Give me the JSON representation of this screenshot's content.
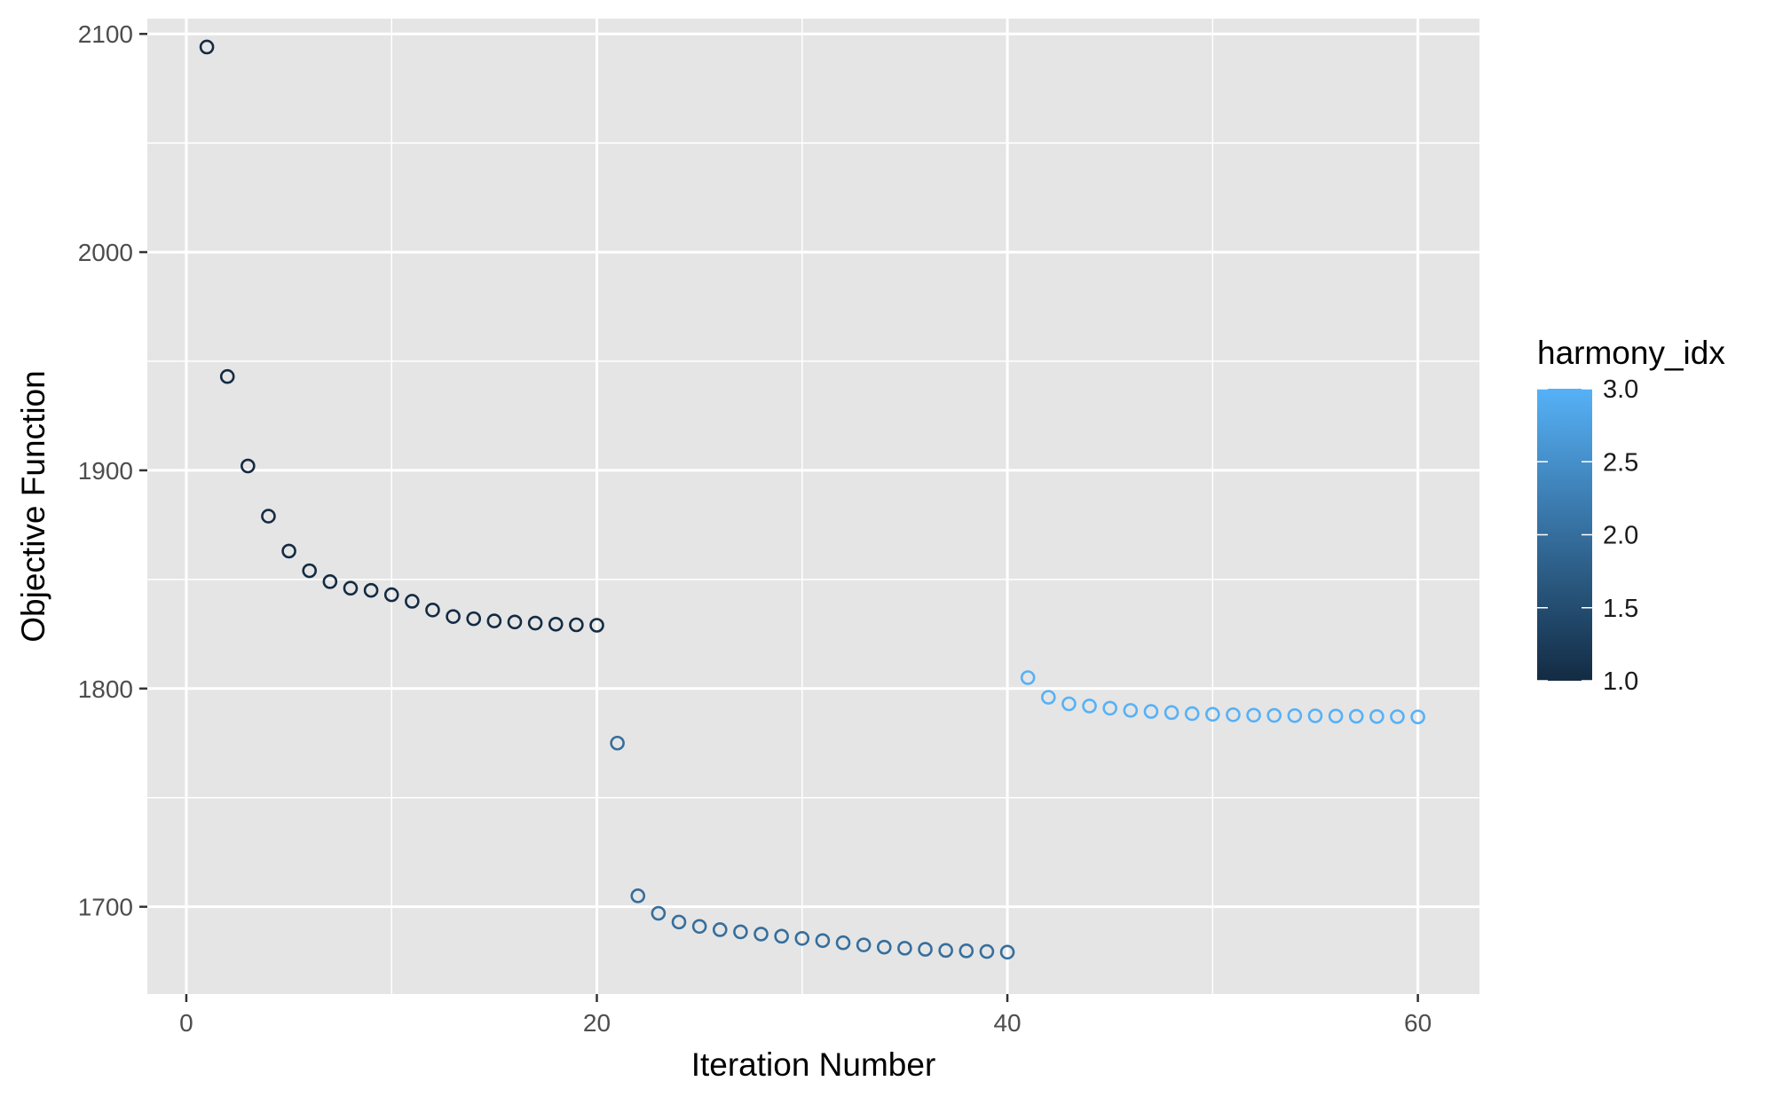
{
  "chart_data": {
    "type": "scatter",
    "xlabel": "Iteration Number",
    "ylabel": "Objective Function",
    "xlim": [
      -1.9,
      63.0
    ],
    "ylim": [
      1660,
      2107
    ],
    "x_ticks": [
      0,
      20,
      40,
      60
    ],
    "x_tick_labels": [
      "0",
      "20",
      "40",
      "60"
    ],
    "y_ticks": [
      1700,
      1800,
      1900,
      2000,
      2100
    ],
    "y_tick_labels": [
      "1700",
      "1800",
      "1900",
      "2000",
      "2100"
    ],
    "grid": true,
    "legend": {
      "title": "harmony_idx",
      "placement": "right",
      "type": "colorbar",
      "range": [
        1.0,
        3.0
      ],
      "breaks": [
        "1.0",
        "1.5",
        "2.0",
        "2.5",
        "3.0"
      ],
      "low_color": "#132B43",
      "high_color": "#56B1F7"
    },
    "colors": {
      "panel_background": "#E5E5E5",
      "grid": "#FFFFFF",
      "low": "#132B43",
      "high": "#56B1F7"
    },
    "points": [
      {
        "x": 1,
        "y": 2094,
        "c": 1
      },
      {
        "x": 2,
        "y": 1943,
        "c": 1
      },
      {
        "x": 3,
        "y": 1902,
        "c": 1
      },
      {
        "x": 4,
        "y": 1879,
        "c": 1
      },
      {
        "x": 5,
        "y": 1863,
        "c": 1
      },
      {
        "x": 6,
        "y": 1854,
        "c": 1
      },
      {
        "x": 7,
        "y": 1849,
        "c": 1
      },
      {
        "x": 8,
        "y": 1846,
        "c": 1
      },
      {
        "x": 9,
        "y": 1845,
        "c": 1
      },
      {
        "x": 10,
        "y": 1843,
        "c": 1
      },
      {
        "x": 11,
        "y": 1840,
        "c": 1
      },
      {
        "x": 12,
        "y": 1836,
        "c": 1
      },
      {
        "x": 13,
        "y": 1833,
        "c": 1
      },
      {
        "x": 14,
        "y": 1832,
        "c": 1
      },
      {
        "x": 15,
        "y": 1831,
        "c": 1
      },
      {
        "x": 16,
        "y": 1830.5,
        "c": 1
      },
      {
        "x": 17,
        "y": 1830,
        "c": 1
      },
      {
        "x": 18,
        "y": 1829.5,
        "c": 1
      },
      {
        "x": 19,
        "y": 1829.2,
        "c": 1
      },
      {
        "x": 20,
        "y": 1829,
        "c": 1
      },
      {
        "x": 21,
        "y": 1775,
        "c": 2
      },
      {
        "x": 22,
        "y": 1705,
        "c": 2
      },
      {
        "x": 23,
        "y": 1697,
        "c": 2
      },
      {
        "x": 24,
        "y": 1693,
        "c": 2
      },
      {
        "x": 25,
        "y": 1691,
        "c": 2
      },
      {
        "x": 26,
        "y": 1689.5,
        "c": 2
      },
      {
        "x": 27,
        "y": 1688.5,
        "c": 2
      },
      {
        "x": 28,
        "y": 1687.5,
        "c": 2
      },
      {
        "x": 29,
        "y": 1686.5,
        "c": 2
      },
      {
        "x": 30,
        "y": 1685.5,
        "c": 2
      },
      {
        "x": 31,
        "y": 1684.5,
        "c": 2
      },
      {
        "x": 32,
        "y": 1683.5,
        "c": 2
      },
      {
        "x": 33,
        "y": 1682.5,
        "c": 2
      },
      {
        "x": 34,
        "y": 1681.5,
        "c": 2
      },
      {
        "x": 35,
        "y": 1681,
        "c": 2
      },
      {
        "x": 36,
        "y": 1680.5,
        "c": 2
      },
      {
        "x": 37,
        "y": 1680,
        "c": 2
      },
      {
        "x": 38,
        "y": 1679.8,
        "c": 2
      },
      {
        "x": 39,
        "y": 1679.5,
        "c": 2
      },
      {
        "x": 40,
        "y": 1679.2,
        "c": 2
      },
      {
        "x": 41,
        "y": 1805,
        "c": 3
      },
      {
        "x": 42,
        "y": 1796,
        "c": 3
      },
      {
        "x": 43,
        "y": 1793,
        "c": 3
      },
      {
        "x": 44,
        "y": 1792,
        "c": 3
      },
      {
        "x": 45,
        "y": 1791,
        "c": 3
      },
      {
        "x": 46,
        "y": 1790,
        "c": 3
      },
      {
        "x": 47,
        "y": 1789.5,
        "c": 3
      },
      {
        "x": 48,
        "y": 1789,
        "c": 3
      },
      {
        "x": 49,
        "y": 1788.5,
        "c": 3
      },
      {
        "x": 50,
        "y": 1788.2,
        "c": 3
      },
      {
        "x": 51,
        "y": 1788,
        "c": 3
      },
      {
        "x": 52,
        "y": 1787.8,
        "c": 3
      },
      {
        "x": 53,
        "y": 1787.7,
        "c": 3
      },
      {
        "x": 54,
        "y": 1787.6,
        "c": 3
      },
      {
        "x": 55,
        "y": 1787.5,
        "c": 3
      },
      {
        "x": 56,
        "y": 1787.4,
        "c": 3
      },
      {
        "x": 57,
        "y": 1787.3,
        "c": 3
      },
      {
        "x": 58,
        "y": 1787.2,
        "c": 3
      },
      {
        "x": 59,
        "y": 1787.1,
        "c": 3
      },
      {
        "x": 60,
        "y": 1787,
        "c": 3
      }
    ]
  }
}
